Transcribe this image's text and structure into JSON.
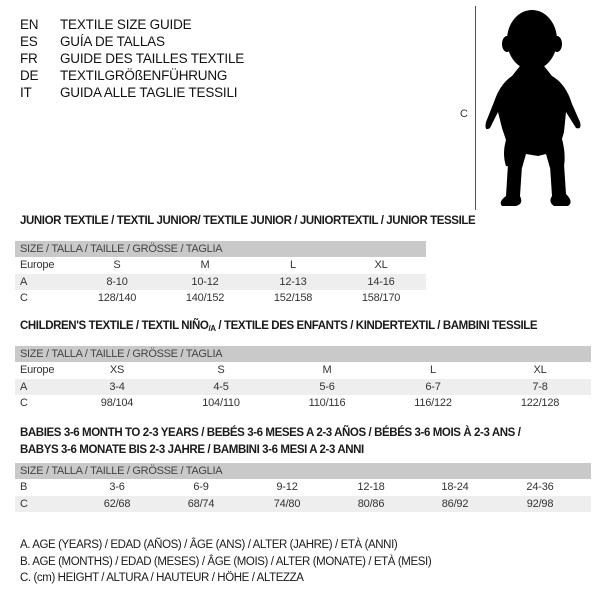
{
  "languages": [
    {
      "code": "EN",
      "text": "TEXTILE SIZE GUIDE"
    },
    {
      "code": "ES",
      "text": "GUÍA DE TALLAS"
    },
    {
      "code": "FR",
      "text": "GUIDE DES TAILLES TEXTILE"
    },
    {
      "code": "DE",
      "text": "TEXTILGRÖßENFÜHRUNG"
    },
    {
      "code": "IT",
      "text": "GUIDA ALLE TAGLIE TESSILI"
    }
  ],
  "figure": {
    "height_label": "C"
  },
  "junior": {
    "title": "JUNIOR TEXTILE / TEXTIL JUNIOR/ TEXTILE JUNIOR / JUNIORTEXTIL / JUNIOR TESSILE",
    "header": "SIZE / TALLA / TAILLE / GRÖSSE / TAGLIA",
    "rows": [
      {
        "label": "Europe",
        "values": [
          "S",
          "M",
          "L",
          "XL"
        ]
      },
      {
        "label": "A",
        "values": [
          "8-10",
          "10-12",
          "12-13",
          "14-16"
        ]
      },
      {
        "label": "C",
        "values": [
          "128/140",
          "140/152",
          "152/158",
          "158/170"
        ]
      }
    ]
  },
  "children": {
    "title": "CHILDREN'S TEXTILE / TEXTIL NIÑO",
    "title_sub": "/A",
    "title_rest": " / TEXTILE DES ENFANTS / KINDERTEXTIL / BAMBINI TESSILE",
    "header": "SIZE / TALLA / TAILLE / GRÖSSE / TAGLIA",
    "rows": [
      {
        "label": "Europe",
        "values": [
          "XS",
          "S",
          "M",
          "L",
          "XL"
        ]
      },
      {
        "label": "A",
        "values": [
          "3-4",
          "4-5",
          "5-6",
          "6-7",
          "7-8"
        ]
      },
      {
        "label": "C",
        "values": [
          "98/104",
          "104/110",
          "110/116",
          "116/122",
          "122/128"
        ]
      }
    ]
  },
  "babies": {
    "title_line1": "BABIES 3-6 MONTH TO 2-3 YEARS / BEBÉS 3-6 MESES A 2-3 AÑOS / BÉBÉS 3-6 MOIS À 2-3 ANS /",
    "title_line2": "BABYS 3-6 MONATE BIS 2-3 JAHRE / BAMBINI 3-6 MESI A 2-3 ANNI",
    "header": "SIZE / TALLA / TAILLE / GRÖSSE / TAGLIA",
    "rows": [
      {
        "label": "B",
        "values": [
          "3-6",
          "6-9",
          "9-12",
          "12-18",
          "18-24",
          "24-36"
        ]
      },
      {
        "label": "C",
        "values": [
          "62/68",
          "68/74",
          "74/80",
          "80/86",
          "86/92",
          "92/98"
        ]
      }
    ]
  },
  "legend": [
    "A. AGE (YEARS) / EDAD (AÑOS) / ÂGE (ANS) / ALTER (JAHRE) / ETÀ (ANNI)",
    "B. AGE (MONTHS) / EDAD (MESES) / ÂGE (MOIS) / ALTER (MONATE) / ETÀ (MESI)",
    "C. (cm) HEIGHT / ALTURA / HAUTEUR / HÖHE / ALTEZZA"
  ]
}
